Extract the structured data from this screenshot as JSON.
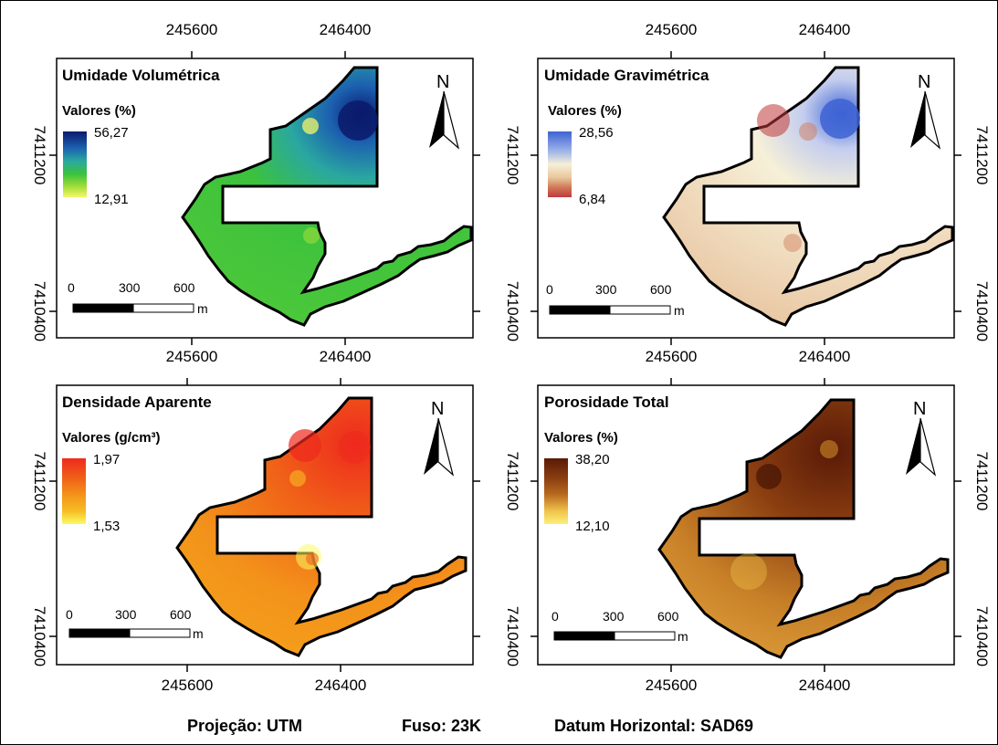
{
  "panels": [
    {
      "id": "umidade-volumetrica",
      "title": "Umidade Volumétrica",
      "legend_title": "Valores (%)",
      "max_label": "56,27",
      "min_label": "12,91",
      "ramp": [
        "#0a1a6b",
        "#1c5fb0",
        "#2aa8a0",
        "#3cc23c",
        "#a8e03a",
        "#f4f76a"
      ]
    },
    {
      "id": "umidade-gravimetrica",
      "title": "Umidade Gravimétrica",
      "legend_title": "Valores (%)",
      "max_label": "28,56",
      "min_label": "6,84",
      "ramp": [
        "#3d63d4",
        "#9fb4e8",
        "#f6f0d8",
        "#e9c79a",
        "#d07a5a",
        "#c0393a"
      ]
    },
    {
      "id": "densidade-aparente",
      "title": "Densidade Aparente",
      "legend_title": "Valores (g/cm³)",
      "max_label": "1,97",
      "min_label": "1,53",
      "ramp": [
        "#ee2a1e",
        "#f06018",
        "#f3921a",
        "#f6bc24",
        "#f8e23a",
        "#fbfb62"
      ]
    },
    {
      "id": "porosidade-total",
      "title": "Porosidade Total",
      "legend_title": "Valores (%)",
      "max_label": "38,20",
      "min_label": "12,10",
      "ramp": [
        "#5a1a08",
        "#8a3e10",
        "#b86a1e",
        "#d8962c",
        "#f0c24a",
        "#fbf07a"
      ]
    }
  ],
  "axes": {
    "x_ticks": [
      "245600",
      "246400"
    ],
    "y_ticks": [
      "7411200",
      "7410400"
    ]
  },
  "north_label": "N",
  "scale_bar": {
    "labels": [
      "0",
      "300",
      "600"
    ],
    "unit": "m"
  },
  "footer": {
    "projection": "Projeção: UTM",
    "zone": "Fuso: 23K",
    "datum": "Datum Horizontal:  SAD69"
  }
}
